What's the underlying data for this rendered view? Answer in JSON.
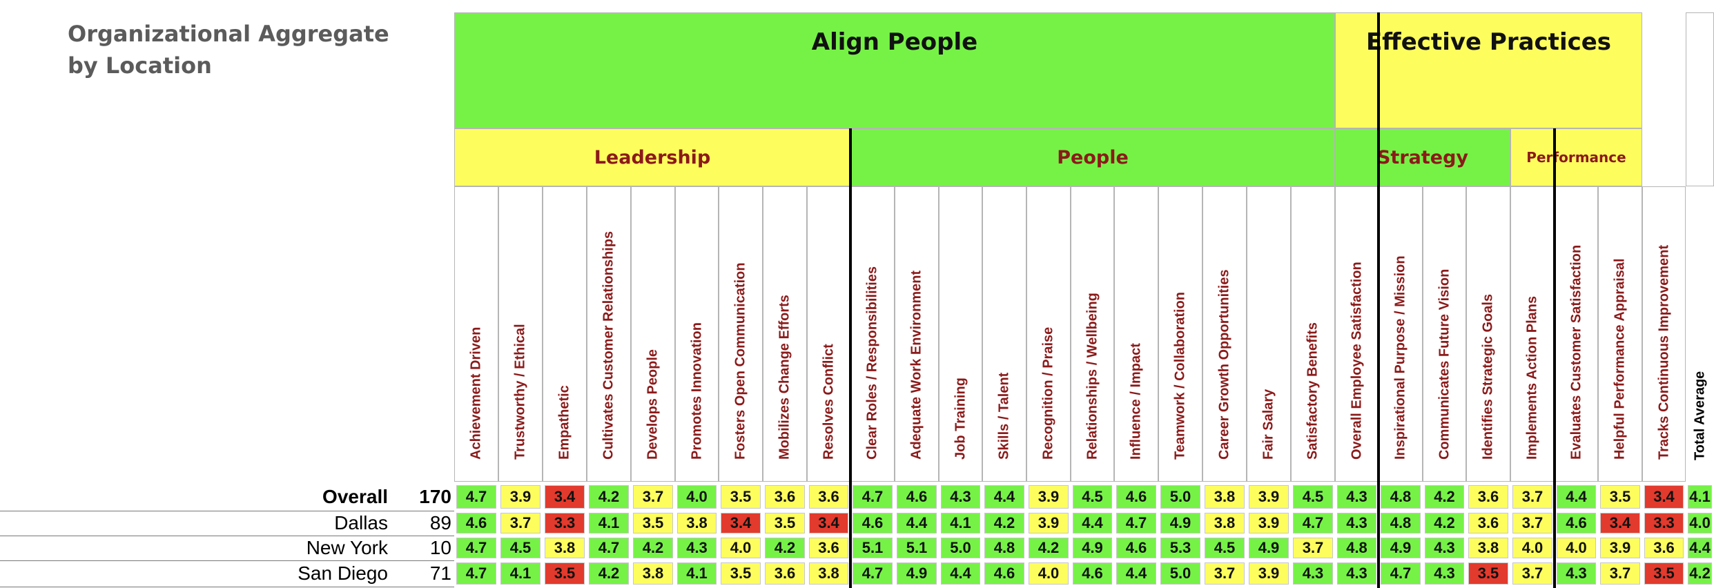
{
  "page": {
    "title": "Organizational Aggregate by Location"
  },
  "colors": {
    "green": "#76f247",
    "yellow": "#fdfd5e",
    "red": "#e23a2d",
    "category_text": "#8b1a1a"
  },
  "chart_data": {
    "type": "table",
    "title": "Organizational Aggregate by Location",
    "groups": [
      {
        "label": "Align People",
        "span": 20,
        "color": "green"
      },
      {
        "label": "Effective Practices",
        "span": 7,
        "color": "yellow"
      }
    ],
    "categories": [
      {
        "label": "Leadership",
        "span": 9,
        "color": "yellow",
        "small": false
      },
      {
        "label": "People",
        "span": 11,
        "color": "green",
        "small": false
      },
      {
        "label": "Strategy",
        "span": 4,
        "color": "green",
        "small": false
      },
      {
        "label": "Performance",
        "span": 3,
        "color": "yellow",
        "small": true
      }
    ],
    "columns": [
      "Achievement Driven",
      "Trustworthy / Ethical",
      "Empathetic",
      "Cultivates Customer Relationships",
      "Develops People",
      "Promotes Innovation",
      "Fosters Open Communication",
      "Mobilizes Change Efforts",
      "Resolves Conflict",
      "Clear Roles / Responsibilities",
      "Adequate Work Environment",
      "Job Training",
      "Skills / Talent",
      "Recognition / Praise",
      "Relationships / Wellbeing",
      "Influence / Impact",
      "Teamwork / Collaboration",
      "Career Growth Opportunities",
      "Fair Salary",
      "Satisfactory Benefits",
      "Overall Employee Satisfaction",
      "Inspirational Purpose / Mission",
      "Communicates Future Vision",
      "Identifies Strategic Goals",
      "Implements Action Plans",
      "Evaluates Customer Satisfaction",
      "Helpful Performance Appraisal",
      "Tracks Continuous Improvement",
      "Total Average"
    ],
    "rows": [
      {
        "label": "Overall",
        "count": "170",
        "bold": true,
        "values": [
          "4.7",
          "3.9",
          "3.4",
          "4.2",
          "3.7",
          "4.0",
          "3.5",
          "3.6",
          "3.6",
          "4.7",
          "4.6",
          "4.3",
          "4.4",
          "3.9",
          "4.5",
          "4.6",
          "5.0",
          "3.8",
          "3.9",
          "4.5",
          "4.3",
          "4.8",
          "4.2",
          "3.6",
          "3.7",
          "4.4",
          "3.5",
          "3.4",
          "4.1"
        ],
        "colors": [
          "g",
          "y",
          "r",
          "g",
          "y",
          "g",
          "y",
          "y",
          "y",
          "g",
          "g",
          "g",
          "g",
          "y",
          "g",
          "g",
          "g",
          "y",
          "y",
          "g",
          "g",
          "g",
          "g",
          "y",
          "y",
          "g",
          "y",
          "r",
          "g"
        ]
      },
      {
        "label": "Dallas",
        "count": "89",
        "bold": false,
        "values": [
          "4.6",
          "3.7",
          "3.3",
          "4.1",
          "3.5",
          "3.8",
          "3.4",
          "3.5",
          "3.4",
          "4.6",
          "4.4",
          "4.1",
          "4.2",
          "3.9",
          "4.4",
          "4.7",
          "4.9",
          "3.8",
          "3.9",
          "4.7",
          "4.3",
          "4.8",
          "4.2",
          "3.6",
          "3.7",
          "4.6",
          "3.4",
          "3.3",
          "4.0"
        ],
        "colors": [
          "g",
          "y",
          "r",
          "g",
          "y",
          "y",
          "r",
          "y",
          "r",
          "g",
          "g",
          "g",
          "g",
          "y",
          "g",
          "g",
          "g",
          "y",
          "y",
          "g",
          "g",
          "g",
          "g",
          "y",
          "y",
          "g",
          "r",
          "r",
          "g"
        ]
      },
      {
        "label": "New York",
        "count": "10",
        "bold": false,
        "values": [
          "4.7",
          "4.5",
          "3.8",
          "4.7",
          "4.2",
          "4.3",
          "4.0",
          "4.2",
          "3.6",
          "5.1",
          "5.1",
          "5.0",
          "4.8",
          "4.2",
          "4.9",
          "4.6",
          "5.3",
          "4.5",
          "4.9",
          "3.7",
          "4.8",
          "4.9",
          "4.3",
          "3.8",
          "4.0",
          "4.0",
          "3.9",
          "3.6",
          "4.4"
        ],
        "colors": [
          "g",
          "g",
          "y",
          "g",
          "g",
          "g",
          "y",
          "g",
          "y",
          "g",
          "g",
          "g",
          "g",
          "g",
          "g",
          "g",
          "g",
          "g",
          "g",
          "y",
          "g",
          "g",
          "g",
          "y",
          "y",
          "y",
          "y",
          "y",
          "g"
        ]
      },
      {
        "label": "San Diego",
        "count": "71",
        "bold": false,
        "values": [
          "4.7",
          "4.1",
          "3.5",
          "4.2",
          "3.8",
          "4.1",
          "3.5",
          "3.6",
          "3.8",
          "4.7",
          "4.9",
          "4.4",
          "4.6",
          "4.0",
          "4.6",
          "4.4",
          "5.0",
          "3.7",
          "3.9",
          "4.3",
          "4.3",
          "4.7",
          "4.3",
          "3.5",
          "3.7",
          "4.3",
          "3.7",
          "3.5",
          "4.2"
        ],
        "colors": [
          "g",
          "g",
          "r",
          "g",
          "y",
          "g",
          "y",
          "y",
          "y",
          "g",
          "g",
          "g",
          "g",
          "y",
          "g",
          "g",
          "g",
          "y",
          "y",
          "g",
          "g",
          "g",
          "g",
          "r",
          "y",
          "g",
          "y",
          "r",
          "g"
        ]
      }
    ]
  }
}
